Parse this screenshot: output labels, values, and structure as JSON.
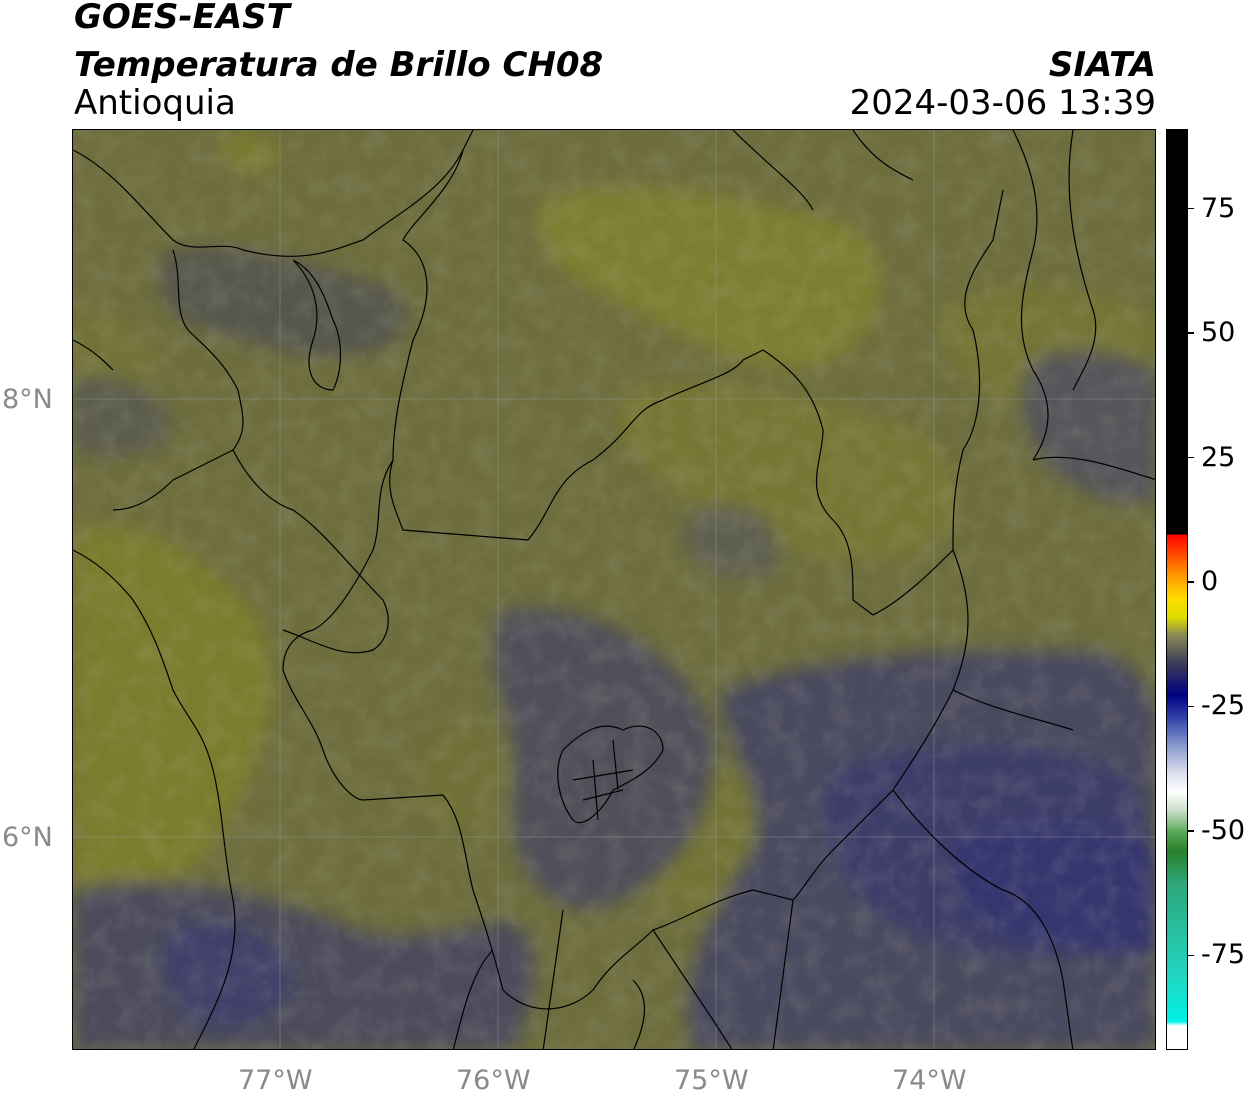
{
  "header": {
    "satellite": "GOES-EAST",
    "product": "Temperatura de Brillo CH08",
    "region": "Antioquia",
    "organization": "SIATA",
    "datetime": "2024-03-06 13:39"
  },
  "map": {
    "lat_labels": [
      "8°N",
      "6°N"
    ],
    "lon_labels": [
      "77°W",
      "76°W",
      "75°W",
      "74°W"
    ],
    "colors": {
      "warm_olive": "#7a7a30",
      "mid_olive": "#6a6a44",
      "cool_grey": "#4e4e58",
      "cold_blue": "#3a3a66"
    }
  },
  "colorbar": {
    "tick_labels": [
      "75",
      "50",
      "25",
      "0",
      "-25",
      "-50",
      "-75"
    ],
    "tick_values": [
      75,
      50,
      25,
      0,
      -25,
      -50,
      -75
    ],
    "range": [
      -94,
      91
    ]
  }
}
